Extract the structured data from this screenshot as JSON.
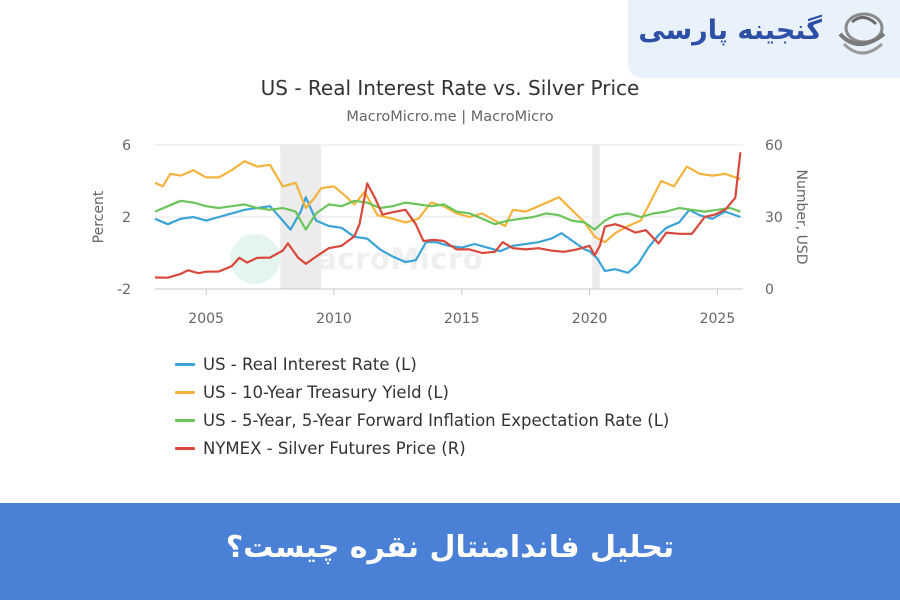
{
  "brand": {
    "name": "گنجینه پارسی"
  },
  "banner": {
    "text": "تحلیل فاندامنتال نقره چیست؟"
  },
  "colors": {
    "real_rate": "#3ba3d8",
    "treasury": "#f3b33d",
    "inflation": "#6cc55a",
    "silver": "#d9483b",
    "banner": "#4a80d6",
    "brand": "#2d4fa5"
  },
  "watermark": {
    "text": "MacroMicro"
  },
  "chart_data": {
    "type": "line",
    "title": "US - Real Interest Rate vs. Silver Price",
    "subtitle": "MacroMicro.me | MacroMicro",
    "ylabel_left": "Percent",
    "ylabel_right": "Number, USD",
    "ylim_left": [
      -2,
      6
    ],
    "ylim_right": [
      0,
      60
    ],
    "xlim": [
      2003,
      2026
    ],
    "yticks_left": [
      "-2",
      "2",
      "6"
    ],
    "yticks_right": [
      "0",
      "30",
      "60"
    ],
    "xticks": [
      "2005",
      "2010",
      "2015",
      "2020",
      "2025"
    ],
    "shaded_periods": [
      [
        2007.9,
        2009.5
      ],
      [
        2020.1,
        2020.4
      ]
    ],
    "grid": true,
    "legend_position": "bottom-left",
    "series": [
      {
        "name": "US - Real Interest Rate (L)",
        "axis": "left",
        "color": "#3ba3d8",
        "x": [
          2003.0,
          2003.5,
          2004.0,
          2004.5,
          2005.0,
          2005.5,
          2006.0,
          2006.5,
          2007.0,
          2007.5,
          2008.0,
          2008.3,
          2008.7,
          2008.9,
          2009.3,
          2009.8,
          2010.3,
          2010.8,
          2011.3,
          2011.8,
          2012.3,
          2012.8,
          2013.2,
          2013.6,
          2014.0,
          2014.5,
          2015.0,
          2015.5,
          2016.0,
          2016.5,
          2017.0,
          2017.5,
          2018.0,
          2018.5,
          2018.9,
          2019.3,
          2019.8,
          2020.0,
          2020.3,
          2020.6,
          2021.0,
          2021.5,
          2021.9,
          2022.3,
          2022.7,
          2023.0,
          2023.5,
          2023.9,
          2024.3,
          2024.8,
          2025.3,
          2025.9
        ],
        "y": [
          1.9,
          1.6,
          1.9,
          2.0,
          1.8,
          2.0,
          2.2,
          2.4,
          2.5,
          2.6,
          1.8,
          1.3,
          2.3,
          3.1,
          1.8,
          1.5,
          1.4,
          0.9,
          0.8,
          0.2,
          -0.2,
          -0.5,
          -0.4,
          0.6,
          0.6,
          0.4,
          0.3,
          0.5,
          0.3,
          0.1,
          0.4,
          0.5,
          0.6,
          0.8,
          1.1,
          0.7,
          0.2,
          0.1,
          -0.3,
          -1.0,
          -0.9,
          -1.1,
          -0.6,
          0.3,
          1.0,
          1.4,
          1.7,
          2.4,
          2.1,
          1.9,
          2.3,
          2.0
        ]
      },
      {
        "name": "US - 10-Year Treasury Yield (L)",
        "axis": "left",
        "color": "#f3b33d",
        "x": [
          2003.0,
          2003.3,
          2003.6,
          2004.0,
          2004.5,
          2005.0,
          2005.5,
          2006.0,
          2006.5,
          2007.0,
          2007.5,
          2008.0,
          2008.5,
          2008.9,
          2009.2,
          2009.5,
          2010.0,
          2010.5,
          2010.8,
          2011.2,
          2011.7,
          2012.3,
          2012.8,
          2013.3,
          2013.8,
          2014.3,
          2014.8,
          2015.3,
          2015.8,
          2016.3,
          2016.7,
          2017.0,
          2017.5,
          2018.0,
          2018.8,
          2019.3,
          2019.8,
          2020.2,
          2020.6,
          2021.0,
          2021.5,
          2022.0,
          2022.4,
          2022.8,
          2023.3,
          2023.8,
          2024.3,
          2024.8,
          2025.3,
          2025.9
        ],
        "y": [
          3.9,
          3.7,
          4.4,
          4.3,
          4.6,
          4.2,
          4.2,
          4.6,
          5.1,
          4.8,
          4.9,
          3.7,
          3.9,
          2.5,
          3.0,
          3.6,
          3.7,
          3.1,
          2.7,
          3.4,
          2.1,
          1.9,
          1.7,
          1.9,
          2.8,
          2.6,
          2.2,
          2.0,
          2.2,
          1.8,
          1.5,
          2.4,
          2.3,
          2.6,
          3.1,
          2.4,
          1.7,
          0.9,
          0.6,
          1.1,
          1.5,
          1.8,
          2.9,
          4.0,
          3.7,
          4.8,
          4.4,
          4.3,
          4.4,
          4.1
        ]
      },
      {
        "name": "US - 5-Year, 5-Year Forward Inflation Expectation Rate (L)",
        "axis": "left",
        "color": "#6cc55a",
        "x": [
          2003.0,
          2003.5,
          2004.0,
          2004.5,
          2005.0,
          2005.5,
          2006.0,
          2006.5,
          2007.0,
          2007.5,
          2008.0,
          2008.5,
          2008.9,
          2009.3,
          2009.8,
          2010.3,
          2010.8,
          2011.3,
          2011.8,
          2012.3,
          2012.8,
          2013.3,
          2013.8,
          2014.3,
          2014.8,
          2015.3,
          2015.8,
          2016.3,
          2016.8,
          2017.3,
          2017.8,
          2018.3,
          2018.8,
          2019.3,
          2019.8,
          2020.2,
          2020.6,
          2021.0,
          2021.5,
          2022.0,
          2022.5,
          2023.0,
          2023.5,
          2024.0,
          2024.5,
          2025.0,
          2025.5,
          2025.9
        ],
        "y": [
          2.3,
          2.6,
          2.9,
          2.8,
          2.6,
          2.5,
          2.6,
          2.7,
          2.5,
          2.4,
          2.5,
          2.3,
          1.3,
          2.2,
          2.7,
          2.6,
          2.9,
          2.8,
          2.5,
          2.6,
          2.8,
          2.7,
          2.6,
          2.7,
          2.3,
          2.2,
          1.9,
          1.6,
          1.8,
          1.9,
          2.0,
          2.2,
          2.1,
          1.8,
          1.7,
          1.3,
          1.8,
          2.1,
          2.2,
          2.0,
          2.2,
          2.3,
          2.5,
          2.4,
          2.3,
          2.4,
          2.5,
          2.3
        ]
      },
      {
        "name": "NYMEX - Silver Futures Price (R)",
        "axis": "right",
        "color": "#d9483b",
        "x": [
          2003.0,
          2003.5,
          2004.0,
          2004.3,
          2004.7,
          2005.0,
          2005.5,
          2006.0,
          2006.3,
          2006.6,
          2007.0,
          2007.5,
          2008.0,
          2008.2,
          2008.6,
          2008.9,
          2009.3,
          2009.8,
          2010.3,
          2010.8,
          2011.0,
          2011.3,
          2011.6,
          2011.9,
          2012.3,
          2012.8,
          2013.2,
          2013.5,
          2013.9,
          2014.3,
          2014.8,
          2015.3,
          2015.8,
          2016.3,
          2016.6,
          2017.0,
          2017.5,
          2018.0,
          2018.5,
          2019.0,
          2019.5,
          2020.0,
          2020.2,
          2020.4,
          2020.6,
          2021.0,
          2021.3,
          2021.8,
          2022.2,
          2022.7,
          2023.0,
          2023.5,
          2024.0,
          2024.5,
          2024.9,
          2025.3,
          2025.7,
          2025.9
        ],
        "y": [
          4.8,
          4.7,
          6.3,
          7.8,
          6.6,
          7.2,
          7.3,
          9.5,
          13.0,
          11.0,
          13.0,
          13.1,
          16.0,
          19.0,
          13.0,
          10.5,
          13.5,
          17.0,
          18.0,
          22.0,
          27.0,
          44.0,
          38.0,
          31.0,
          32.0,
          33.0,
          27.0,
          20.0,
          20.5,
          20.0,
          16.5,
          16.5,
          15.0,
          15.5,
          19.5,
          17.0,
          16.5,
          17.0,
          16.0,
          15.5,
          16.5,
          18.0,
          14.0,
          18.0,
          26.0,
          27.0,
          26.0,
          23.5,
          24.5,
          19.0,
          23.5,
          23.0,
          23.0,
          30.0,
          31.0,
          33.0,
          38.0,
          57.0
        ]
      }
    ]
  }
}
